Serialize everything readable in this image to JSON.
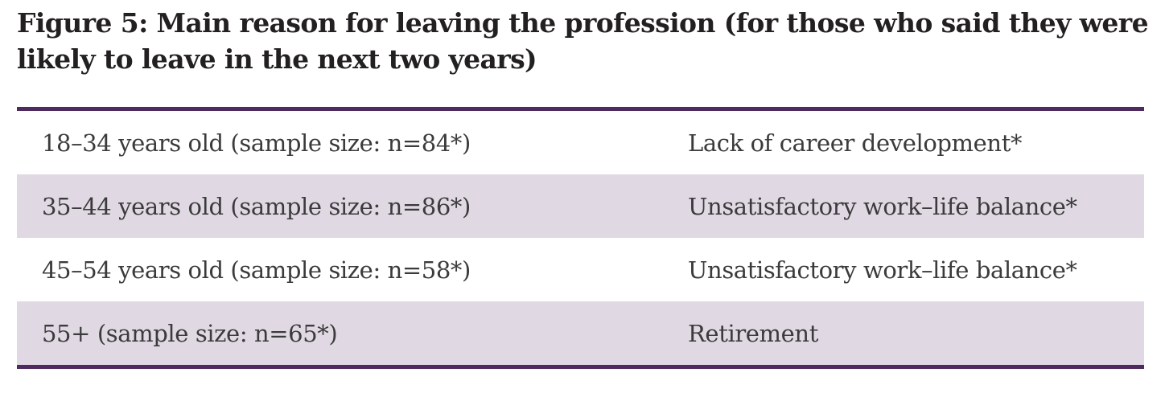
{
  "figure": {
    "title_lines": [
      "Figure 5: Main reason for leaving the profession (for those who said they were",
      "likely to leave in the next two years)"
    ]
  },
  "table": {
    "rows": [
      {
        "group": "18–34 years old (sample size: n=84*)",
        "reason": "Lack of career development*"
      },
      {
        "group": "35–44 years old (sample size: n=86*)",
        "reason": "Unsatisfactory work–life balance*"
      },
      {
        "group": "45–54 years old (sample size: n=58*)",
        "reason": "Unsatisfactory work–life balance*"
      },
      {
        "group": "55+ (sample size: n=65*)",
        "reason": "Retirement"
      }
    ]
  },
  "colors": {
    "rule": "#4f2a5f",
    "row_shade": "#e0d9e3",
    "title_text": "#232021",
    "body_text": "#3b3a3c",
    "background": "#ffffff"
  }
}
